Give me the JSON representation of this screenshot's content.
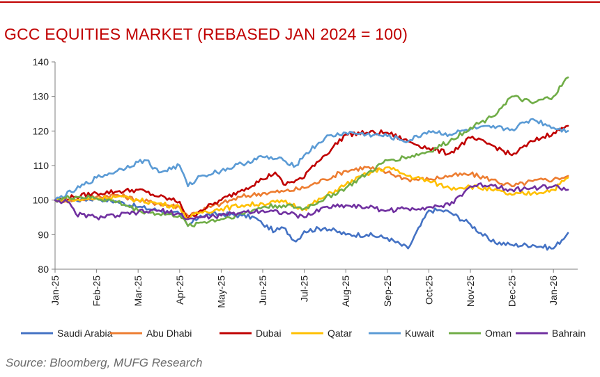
{
  "header": {
    "title": "GCC EQUITIES MARKET (REBASED JAN 2024 = 100)"
  },
  "footer": {
    "source": "Source: Bloomberg, MUFG Research"
  },
  "chart_data": {
    "type": "line",
    "title": "GCC EQUITIES MARKET (REBASED JAN 2024 = 100)",
    "xlabel": "",
    "ylabel": "",
    "ylim": [
      80,
      140
    ],
    "yticks": [
      80,
      90,
      100,
      110,
      120,
      130,
      140
    ],
    "x_range": [
      0,
      12.35
    ],
    "x_tick_labels": [
      "Jan-25",
      "Feb-25",
      "Mar-25",
      "Apr-25",
      "May-25",
      "Jun-25",
      "Jul-25",
      "Aug-25",
      "Sep-25",
      "Oct-25",
      "Nov-25",
      "Dec-25",
      "Jan-26"
    ],
    "grid": false,
    "legend": "bottom",
    "series": [
      {
        "name": "Saudi Arabia",
        "color": "#4472c4",
        "x": [
          0,
          0.5,
          1,
          1.5,
          2,
          2.5,
          3,
          3.2,
          3.5,
          4,
          4.5,
          4.8,
          5,
          5.3,
          5.5,
          5.8,
          6,
          6.5,
          7,
          7.5,
          8,
          8.5,
          9,
          9.3,
          9.5,
          10,
          10.5,
          11,
          11.5,
          12,
          12.35
        ],
        "values": [
          100,
          100,
          100.5,
          99.5,
          98,
          97,
          96,
          92.5,
          95.5,
          96,
          95.5,
          95,
          93,
          91,
          92,
          88,
          91,
          92,
          90,
          90,
          89,
          86,
          97,
          97,
          96.5,
          93,
          88,
          87,
          87,
          86,
          90.5
        ]
      },
      {
        "name": "Abu Dhabi",
        "color": "#ed7d31",
        "x": [
          0,
          0.5,
          1,
          1.5,
          2,
          2.5,
          3,
          3.2,
          3.5,
          4,
          4.5,
          5,
          5.5,
          6,
          6.5,
          7,
          7.5,
          8,
          8.5,
          9,
          9.5,
          10,
          10.5,
          11,
          11.5,
          12,
          12.35
        ],
        "values": [
          100,
          100,
          101,
          101.5,
          100,
          99,
          98,
          95.5,
          97,
          99,
          101,
          102,
          102.5,
          103.5,
          106,
          108.5,
          109.5,
          108,
          106,
          106,
          107,
          107.5,
          106,
          104,
          105.5,
          106,
          107
        ]
      },
      {
        "name": "Dubai",
        "color": "#c00000",
        "x": [
          0,
          0.5,
          1,
          1.5,
          2,
          2.5,
          3,
          3.2,
          3.5,
          4,
          4.5,
          5,
          5.3,
          5.5,
          6,
          6.2,
          6.5,
          7,
          7.5,
          8,
          8.5,
          9,
          9.5,
          10,
          10.5,
          11,
          11.5,
          12,
          12.35
        ],
        "values": [
          100,
          101,
          102,
          102.5,
          103,
          101,
          99.5,
          94.5,
          97,
          100,
          103,
          106,
          108,
          104.5,
          106.5,
          110,
          113,
          119,
          119.5,
          119.5,
          117,
          115,
          113.5,
          118,
          116,
          113,
          117,
          119.5,
          121.5
        ]
      },
      {
        "name": "Qatar",
        "color": "#ffc000",
        "x": [
          0,
          0.5,
          1,
          1.5,
          2,
          2.5,
          3,
          3.2,
          3.5,
          4,
          4.5,
          5,
          5.5,
          6,
          6.5,
          7,
          7.5,
          8,
          8.5,
          9,
          9.5,
          10,
          10.5,
          11,
          11.5,
          12,
          12.35
        ],
        "values": [
          100,
          100,
          100.5,
          101,
          100,
          99,
          98,
          94.5,
          96.5,
          97.5,
          98.5,
          99,
          99.5,
          97.5,
          101,
          104.5,
          107.5,
          109.5,
          107,
          105.5,
          103.5,
          104,
          103,
          101.5,
          102,
          103,
          106.5
        ]
      },
      {
        "name": "Kuwait",
        "color": "#5b9bd5",
        "x": [
          0,
          0.5,
          1,
          1.5,
          2,
          2.2,
          2.5,
          3,
          3.2,
          3.5,
          4,
          4.5,
          5,
          5.5,
          5.8,
          6,
          6.5,
          7,
          7.5,
          8,
          8.5,
          9,
          9.5,
          10,
          10.5,
          11,
          11.5,
          12,
          12.35
        ],
        "values": [
          100,
          103,
          106.5,
          108.5,
          111,
          111.5,
          108,
          110,
          104,
          107,
          108.5,
          110.5,
          112.5,
          111.5,
          110,
          113,
          118,
          119.5,
          119,
          118.5,
          117,
          120,
          119,
          120.5,
          121,
          120.5,
          123.5,
          121,
          120
        ]
      },
      {
        "name": "Oman",
        "color": "#70ad47",
        "x": [
          0,
          0.5,
          1,
          1.5,
          2,
          2.5,
          3,
          3.2,
          3.5,
          4,
          4.5,
          5,
          5.5,
          6,
          6.5,
          7,
          7.5,
          8,
          8.5,
          9,
          9.5,
          10,
          10.5,
          11,
          11.5,
          12,
          12.35
        ],
        "values": [
          100,
          101,
          100.5,
          99.5,
          97,
          96,
          95.5,
          92.5,
          93.5,
          94.5,
          96,
          98,
          98.5,
          97.5,
          100.5,
          103.5,
          107.5,
          111.5,
          112.5,
          114,
          117,
          121,
          124,
          130,
          128,
          130,
          135.5
        ]
      },
      {
        "name": "Bahrain",
        "color": "#7030a0",
        "x": [
          0,
          0.3,
          0.5,
          1,
          1.5,
          2,
          2.5,
          3,
          3.2,
          3.5,
          4,
          4.5,
          5,
          5.5,
          6,
          6.5,
          7,
          7.5,
          8,
          8.5,
          9,
          9.5,
          10,
          10.5,
          11,
          11.5,
          12,
          12.35
        ],
        "values": [
          100,
          99.5,
          96,
          95,
          95.5,
          96.5,
          97,
          96,
          94.5,
          95,
          95.5,
          96.5,
          97,
          96.5,
          95,
          98,
          98.5,
          98,
          97,
          97.5,
          98,
          98.5,
          104,
          104.5,
          103,
          103.5,
          104,
          103
        ]
      }
    ]
  }
}
